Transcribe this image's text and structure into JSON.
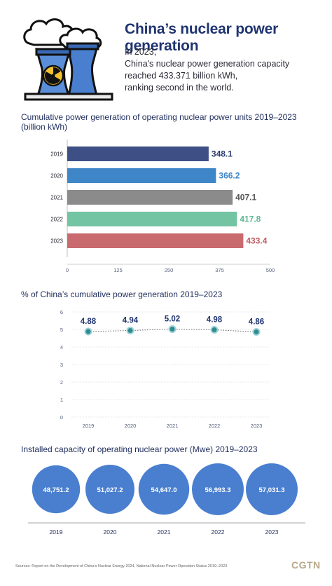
{
  "header": {
    "title": "China’s nuclear power generation",
    "intro_lines": [
      "In 2023,",
      "China's nuclear power generation capacity",
      "reached 433.371 billion kWh,",
      "ranking second in the world."
    ]
  },
  "section1": {
    "title": "Cumulative power generation of operating nuclear power units 2019–2023",
    "unit": "(billion kWh)"
  },
  "section2": {
    "title": "% of China’s cumulative power generation 2019–2023"
  },
  "section3": {
    "title": "Installed capacity of operating nuclear power (Mwe) 2019–2023"
  },
  "chart_data": [
    {
      "type": "bar",
      "orientation": "horizontal",
      "title": "Cumulative power generation of operating nuclear power units 2019–2023",
      "ylabel": "(billion kWh)",
      "categories": [
        "2019",
        "2020",
        "2021",
        "2022",
        "2023"
      ],
      "values": [
        348.1,
        366.2,
        407.1,
        417.8,
        433.4
      ],
      "labels": [
        "348.1",
        "366.2",
        "407.1",
        "417.8",
        "433.4"
      ],
      "colors": [
        "#3d4f85",
        "#3f86c8",
        "#8b8b8b",
        "#73c4a3",
        "#c96a6e"
      ],
      "label_colors": [
        "#2a3a6e",
        "#3f86c8",
        "#555555",
        "#5cb893",
        "#c25c60"
      ],
      "xlim": [
        0,
        500
      ],
      "xticks": [
        "0",
        "125",
        "250",
        "375",
        "500"
      ],
      "grid": false
    },
    {
      "type": "line",
      "title": "% of China’s cumulative power generation 2019–2023",
      "x": [
        "2019",
        "2020",
        "2021",
        "2022",
        "2023"
      ],
      "values": [
        4.88,
        4.94,
        5.02,
        4.98,
        4.86
      ],
      "labels": [
        "4.88",
        "4.94",
        "5.02",
        "4.98",
        "4.86"
      ],
      "ylim": [
        0,
        6
      ],
      "yticks": [
        "0",
        "1",
        "2",
        "3",
        "4",
        "5",
        "6"
      ],
      "line_style": "dotted",
      "marker_color": "#2f8c92",
      "grid": true
    },
    {
      "type": "bubble",
      "title": "Installed capacity of operating nuclear power (Mwe) 2019–2023",
      "categories": [
        "2019",
        "2020",
        "2021",
        "2022",
        "2023"
      ],
      "values": [
        48751.2,
        51027.2,
        54647.0,
        56993.3,
        57031.3
      ],
      "labels": [
        "48,751.2",
        "51,027.2",
        "54,647.0",
        "56,993.3",
        "57,031.3"
      ],
      "color": "#4a7fcf"
    }
  ],
  "footer": {
    "source": "Sources: Report on the Development of China’s Nuclear Energy 2024, National Nuclear Power Operation Status 2019–2023",
    "logo": "CGTN"
  }
}
